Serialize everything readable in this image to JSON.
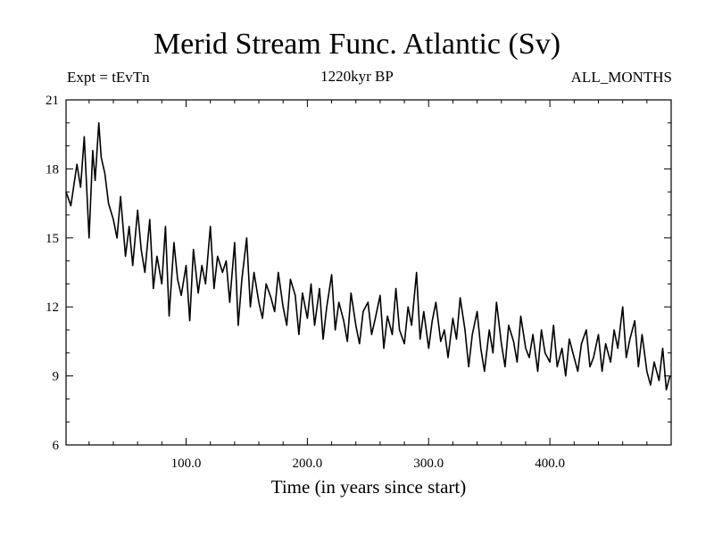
{
  "chart_data": {
    "type": "line",
    "title": "Merid Stream Func. Atlantic (Sv)",
    "subtitle_left": "Expt = tEvTn",
    "subtitle_center": "1220kyr BP",
    "subtitle_right": "ALL_MONTHS",
    "xlabel": "Time (in years since start)",
    "ylabel": "",
    "xlim": [
      1,
      500
    ],
    "ylim": [
      6,
      21
    ],
    "xticks": [
      100,
      200,
      300,
      400
    ],
    "xtick_labels": [
      "100.0",
      "200.0",
      "300.0",
      "400.0"
    ],
    "yticks": [
      6,
      9,
      12,
      15,
      18,
      21
    ],
    "ytick_labels": [
      "6",
      "9",
      "12",
      "15",
      "18",
      "21"
    ],
    "series": [
      {
        "name": "Merid Stream Func. Atlantic",
        "x": [
          1,
          5,
          10,
          13,
          16,
          20,
          23,
          25,
          28,
          30,
          33,
          36,
          40,
          43,
          46,
          50,
          53,
          56,
          60,
          63,
          66,
          70,
          73,
          76,
          80,
          83,
          86,
          90,
          93,
          96,
          100,
          103,
          106,
          110,
          113,
          116,
          120,
          123,
          126,
          130,
          133,
          136,
          140,
          143,
          146,
          150,
          153,
          156,
          160,
          163,
          166,
          170,
          173,
          176,
          180,
          183,
          186,
          190,
          193,
          196,
          200,
          203,
          206,
          210,
          213,
          216,
          220,
          223,
          226,
          230,
          233,
          236,
          240,
          243,
          246,
          250,
          253,
          256,
          260,
          263,
          266,
          270,
          273,
          276,
          280,
          283,
          286,
          290,
          293,
          296,
          300,
          303,
          306,
          310,
          313,
          316,
          320,
          323,
          326,
          330,
          333,
          336,
          340,
          343,
          346,
          350,
          353,
          356,
          360,
          363,
          366,
          370,
          373,
          376,
          380,
          383,
          386,
          390,
          393,
          396,
          400,
          403,
          406,
          410,
          413,
          416,
          420,
          423,
          426,
          430,
          433,
          436,
          440,
          443,
          446,
          450,
          453,
          456,
          460,
          463,
          466,
          470,
          473,
          476,
          480,
          483,
          486,
          490,
          493,
          496,
          499
        ],
        "values": [
          17.0,
          16.4,
          18.2,
          17.2,
          19.4,
          15.0,
          18.8,
          17.5,
          20.0,
          18.5,
          17.8,
          16.5,
          15.8,
          15.0,
          16.8,
          14.2,
          15.5,
          13.8,
          16.2,
          14.5,
          13.5,
          15.8,
          12.8,
          14.2,
          13.0,
          15.5,
          11.6,
          14.8,
          13.2,
          12.5,
          13.8,
          11.4,
          14.5,
          12.6,
          13.8,
          13.0,
          15.5,
          12.8,
          14.2,
          13.5,
          14.0,
          12.2,
          14.8,
          11.2,
          13.2,
          15.0,
          12.0,
          13.5,
          12.2,
          11.5,
          13.0,
          12.4,
          11.8,
          13.5,
          12.0,
          11.2,
          13.2,
          12.5,
          10.8,
          12.6,
          11.5,
          13.0,
          11.2,
          12.8,
          10.6,
          12.0,
          13.4,
          11.0,
          12.2,
          11.4,
          10.5,
          12.6,
          11.2,
          10.4,
          11.8,
          12.2,
          10.8,
          11.5,
          12.5,
          10.2,
          11.6,
          10.8,
          12.8,
          11.0,
          10.4,
          12.0,
          11.2,
          13.5,
          10.6,
          11.8,
          10.2,
          11.4,
          12.2,
          10.5,
          11.0,
          9.8,
          11.5,
          10.6,
          12.4,
          11.0,
          9.4,
          10.8,
          11.8,
          10.2,
          9.2,
          11.0,
          10.0,
          12.2,
          10.4,
          9.4,
          11.2,
          10.5,
          9.6,
          11.6,
          10.2,
          9.8,
          10.8,
          9.2,
          11.0,
          10.0,
          9.6,
          11.2,
          9.4,
          10.2,
          9.0,
          10.6,
          9.8,
          9.2,
          10.4,
          11.0,
          9.4,
          9.8,
          10.8,
          9.2,
          10.4,
          9.6,
          11.0,
          10.2,
          12.0,
          9.8,
          10.6,
          11.4,
          9.4,
          10.8,
          9.2,
          8.6,
          9.6,
          8.8,
          10.2,
          8.4,
          9.0
        ]
      }
    ]
  }
}
